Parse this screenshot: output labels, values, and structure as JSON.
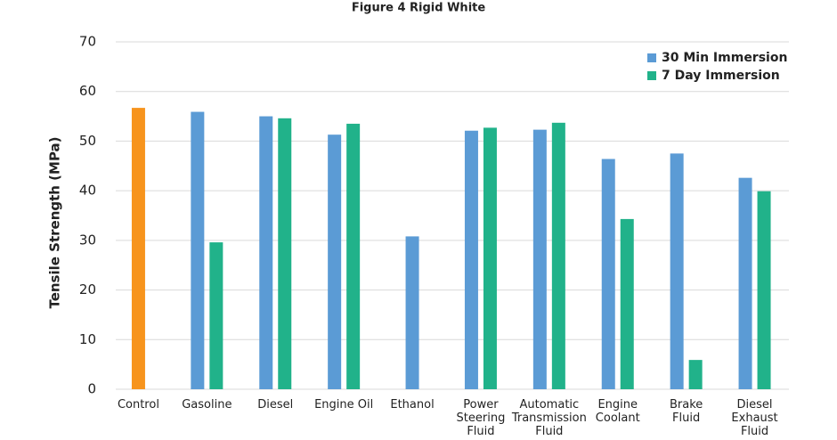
{
  "chart_data": {
    "type": "bar",
    "title": "Figure 4 Rigid White",
    "y_label": "Tensile Strength (MPa)",
    "categories": [
      "Control",
      "Gasoline",
      "Diesel",
      "Engine Oil",
      "Ethanol",
      "Power\nSteering\nFluid",
      "Automatic\nTransmission\nFluid",
      "Engine\nCoolant",
      "Brake\nFluid",
      "Diesel\nExhaust\nFluid"
    ],
    "series": [
      {
        "name": "30 Min Immersion",
        "color": "#5b9bd5",
        "values": [
          null,
          55.9,
          55.0,
          51.3,
          30.8,
          52.1,
          52.3,
          46.4,
          47.5,
          42.6
        ]
      },
      {
        "name": "7 Day Immersion",
        "color": "#21b28a",
        "values": [
          null,
          29.6,
          54.6,
          53.5,
          null,
          52.7,
          53.7,
          34.3,
          5.9,
          39.9
        ]
      },
      {
        "color": "#f7941d",
        "values": [
          56.7,
          null,
          null,
          null,
          null,
          null,
          null,
          null,
          null,
          null
        ]
      }
    ],
    "ylim": [
      0,
      70
    ],
    "yticks": [
      0,
      10,
      20,
      30,
      40,
      50,
      60,
      70
    ],
    "grid": true,
    "legend": "top-right"
  }
}
